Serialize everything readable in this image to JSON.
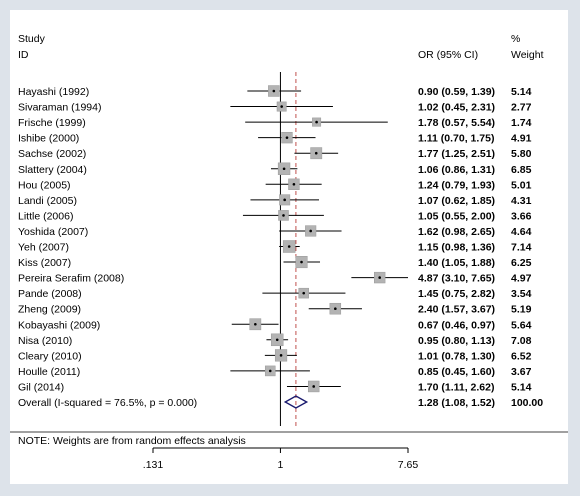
{
  "chart_data": {
    "type": "forest",
    "header": {
      "study": "Study",
      "id": "ID",
      "effect": "OR (95% CI)",
      "percent": "%",
      "weight": "Weight"
    },
    "studies": [
      {
        "name": "Hayashi (1992)",
        "or": 0.9,
        "lo": 0.59,
        "hi": 1.39,
        "label": "0.90 (0.59, 1.39)",
        "weight": 5.14,
        "weight_label": "5.14"
      },
      {
        "name": "Sivaraman (1994)",
        "or": 1.02,
        "lo": 0.45,
        "hi": 2.31,
        "label": "1.02 (0.45, 2.31)",
        "weight": 2.77,
        "weight_label": "2.77"
      },
      {
        "name": "Frische (1999)",
        "or": 1.78,
        "lo": 0.57,
        "hi": 5.54,
        "label": "1.78 (0.57, 5.54)",
        "weight": 1.74,
        "weight_label": "1.74"
      },
      {
        "name": "Ishibe (2000)",
        "or": 1.11,
        "lo": 0.7,
        "hi": 1.75,
        "label": "1.11 (0.70, 1.75)",
        "weight": 4.91,
        "weight_label": "4.91"
      },
      {
        "name": "Sachse (2002)",
        "or": 1.77,
        "lo": 1.25,
        "hi": 2.51,
        "label": "1.77 (1.25, 2.51)",
        "weight": 5.8,
        "weight_label": "5.80"
      },
      {
        "name": "Slattery (2004)",
        "or": 1.06,
        "lo": 0.86,
        "hi": 1.31,
        "label": "1.06 (0.86, 1.31)",
        "weight": 6.85,
        "weight_label": "6.85"
      },
      {
        "name": "Hou (2005)",
        "or": 1.24,
        "lo": 0.79,
        "hi": 1.93,
        "label": "1.24 (0.79, 1.93)",
        "weight": 5.01,
        "weight_label": "5.01"
      },
      {
        "name": "Landi (2005)",
        "or": 1.07,
        "lo": 0.62,
        "hi": 1.85,
        "label": "1.07 (0.62, 1.85)",
        "weight": 4.31,
        "weight_label": "4.31"
      },
      {
        "name": "Little (2006)",
        "or": 1.05,
        "lo": 0.55,
        "hi": 2.0,
        "label": "1.05 (0.55, 2.00)",
        "weight": 3.66,
        "weight_label": "3.66"
      },
      {
        "name": "Yoshida (2007)",
        "or": 1.62,
        "lo": 0.98,
        "hi": 2.65,
        "label": "1.62 (0.98, 2.65)",
        "weight": 4.64,
        "weight_label": "4.64"
      },
      {
        "name": "Yeh (2007)",
        "or": 1.15,
        "lo": 0.98,
        "hi": 1.36,
        "label": "1.15 (0.98, 1.36)",
        "weight": 7.14,
        "weight_label": "7.14"
      },
      {
        "name": "Kiss (2007)",
        "or": 1.4,
        "lo": 1.05,
        "hi": 1.88,
        "label": "1.40 (1.05, 1.88)",
        "weight": 6.25,
        "weight_label": "6.25"
      },
      {
        "name": "Pereira Serafim (2008)",
        "or": 4.87,
        "lo": 3.1,
        "hi": 7.65,
        "label": "4.87 (3.10, 7.65)",
        "weight": 4.97,
        "weight_label": "4.97"
      },
      {
        "name": "Pande (2008)",
        "or": 1.45,
        "lo": 0.75,
        "hi": 2.82,
        "label": "1.45 (0.75, 2.82)",
        "weight": 3.54,
        "weight_label": "3.54"
      },
      {
        "name": "Zheng (2009)",
        "or": 2.4,
        "lo": 1.57,
        "hi": 3.67,
        "label": "2.40 (1.57, 3.67)",
        "weight": 5.19,
        "weight_label": "5.19"
      },
      {
        "name": "Kobayashi (2009)",
        "or": 0.67,
        "lo": 0.46,
        "hi": 0.97,
        "label": "0.67 (0.46, 0.97)",
        "weight": 5.64,
        "weight_label": "5.64"
      },
      {
        "name": "Nisa (2010)",
        "or": 0.95,
        "lo": 0.8,
        "hi": 1.13,
        "label": "0.95 (0.80, 1.13)",
        "weight": 7.08,
        "weight_label": "7.08"
      },
      {
        "name": "Cleary (2010)",
        "or": 1.01,
        "lo": 0.78,
        "hi": 1.3,
        "label": "1.01 (0.78, 1.30)",
        "weight": 6.52,
        "weight_label": "6.52"
      },
      {
        "name": "Houlle (2011)",
        "or": 0.85,
        "lo": 0.45,
        "hi": 1.6,
        "label": "0.85 (0.45, 1.60)",
        "weight": 3.67,
        "weight_label": "3.67"
      },
      {
        "name": "Gil (2014)",
        "or": 1.7,
        "lo": 1.11,
        "hi": 2.62,
        "label": "1.70 (1.11, 2.62)",
        "weight": 5.14,
        "weight_label": "5.14"
      }
    ],
    "overall": {
      "name": "Overall  (I-squared = 76.5%, p = 0.000)",
      "or": 1.28,
      "lo": 1.08,
      "hi": 1.52,
      "label": "1.28 (1.08, 1.52)",
      "weight_label": "100.00"
    },
    "note": "NOTE: Weights are from random effects analysis",
    "x_axis": {
      "scale": "log",
      "ticks": [
        0.131,
        1,
        7.65
      ],
      "tick_labels": [
        ".131",
        "1",
        "7.65"
      ],
      "null_line": 1
    },
    "colors": {
      "background": "#dde3ea",
      "plot_area": "#ffffff",
      "box": "#b3b3b3",
      "ci_line": "#000000",
      "overall_line": "#c0504d",
      "diamond": "#1a1a6e"
    }
  }
}
